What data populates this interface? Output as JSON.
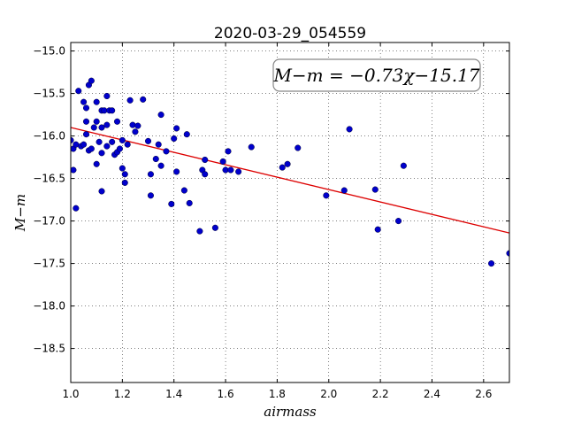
{
  "chart_data": {
    "type": "scatter",
    "title": "2020-03-29_054559",
    "xlabel": "airmass",
    "ylabel": "M−m",
    "xlim": [
      1.0,
      2.7
    ],
    "ylim": [
      -18.9,
      -14.9
    ],
    "y_inverted": true,
    "grid": true,
    "xticks": [
      1.0,
      1.2,
      1.4,
      1.6,
      1.8,
      2.0,
      2.2,
      2.4,
      2.6
    ],
    "xtick_labels": [
      "1.0",
      "1.2",
      "1.4",
      "1.6",
      "1.8",
      "2.0",
      "2.2",
      "2.4",
      "2.6"
    ],
    "yticks": [
      -15.0,
      -15.5,
      -16.0,
      -16.5,
      -17.0,
      -17.5,
      -18.0,
      -18.5
    ],
    "ytick_labels": [
      "−15.0",
      "−15.5",
      "−16.0",
      "−16.5",
      "−17.0",
      "−17.5",
      "−18.0",
      "−18.5"
    ],
    "annotation": "M−m = −0.73χ−15.17",
    "annotation_position": "top-right",
    "fit": {
      "slope": -0.73,
      "intercept": -15.17,
      "color": "#dd0000"
    },
    "marker_color": "#0000cc",
    "points": [
      [
        1.0,
        -16.05
      ],
      [
        1.01,
        -16.15
      ],
      [
        1.01,
        -16.4
      ],
      [
        1.02,
        -16.1
      ],
      [
        1.02,
        -16.85
      ],
      [
        1.03,
        -15.47
      ],
      [
        1.04,
        -16.12
      ],
      [
        1.05,
        -15.6
      ],
      [
        1.05,
        -16.1
      ],
      [
        1.06,
        -15.98
      ],
      [
        1.06,
        -15.67
      ],
      [
        1.06,
        -15.83
      ],
      [
        1.07,
        -15.4
      ],
      [
        1.07,
        -16.17
      ],
      [
        1.08,
        -15.35
      ],
      [
        1.08,
        -16.15
      ],
      [
        1.09,
        -15.9
      ],
      [
        1.1,
        -15.83
      ],
      [
        1.1,
        -15.6
      ],
      [
        1.1,
        -16.33
      ],
      [
        1.11,
        -16.07
      ],
      [
        1.12,
        -15.7
      ],
      [
        1.12,
        -15.9
      ],
      [
        1.12,
        -16.2
      ],
      [
        1.12,
        -16.65
      ],
      [
        1.13,
        -15.7
      ],
      [
        1.14,
        -15.87
      ],
      [
        1.14,
        -16.12
      ],
      [
        1.14,
        -15.53
      ],
      [
        1.15,
        -15.7
      ],
      [
        1.16,
        -16.07
      ],
      [
        1.16,
        -15.7
      ],
      [
        1.17,
        -16.22
      ],
      [
        1.18,
        -16.19
      ],
      [
        1.18,
        -15.83
      ],
      [
        1.19,
        -16.15
      ],
      [
        1.2,
        -16.05
      ],
      [
        1.2,
        -16.38
      ],
      [
        1.21,
        -16.45
      ],
      [
        1.21,
        -16.55
      ],
      [
        1.22,
        -16.1
      ],
      [
        1.23,
        -15.58
      ],
      [
        1.24,
        -15.87
      ],
      [
        1.25,
        -15.95
      ],
      [
        1.26,
        -15.88
      ],
      [
        1.28,
        -15.57
      ],
      [
        1.3,
        -16.06
      ],
      [
        1.31,
        -16.45
      ],
      [
        1.31,
        -16.7
      ],
      [
        1.33,
        -16.27
      ],
      [
        1.34,
        -16.1
      ],
      [
        1.35,
        -16.35
      ],
      [
        1.35,
        -15.75
      ],
      [
        1.37,
        -16.18
      ],
      [
        1.39,
        -16.8
      ],
      [
        1.4,
        -16.03
      ],
      [
        1.41,
        -15.91
      ],
      [
        1.41,
        -16.42
      ],
      [
        1.44,
        -16.64
      ],
      [
        1.45,
        -15.98
      ],
      [
        1.46,
        -16.79
      ],
      [
        1.5,
        -17.12
      ],
      [
        1.51,
        -16.4
      ],
      [
        1.52,
        -16.45
      ],
      [
        1.52,
        -16.28
      ],
      [
        1.56,
        -17.08
      ],
      [
        1.59,
        -16.3
      ],
      [
        1.6,
        -16.4
      ],
      [
        1.61,
        -16.18
      ],
      [
        1.62,
        -16.4
      ],
      [
        1.65,
        -16.42
      ],
      [
        1.7,
        -16.13
      ],
      [
        1.82,
        -16.37
      ],
      [
        1.84,
        -16.33
      ],
      [
        1.88,
        -16.14
      ],
      [
        1.99,
        -16.7
      ],
      [
        2.06,
        -16.64
      ],
      [
        2.08,
        -15.92
      ],
      [
        2.18,
        -16.63
      ],
      [
        2.19,
        -17.1
      ],
      [
        2.27,
        -17.0
      ],
      [
        2.29,
        -16.35
      ],
      [
        2.63,
        -17.5
      ],
      [
        2.7,
        -17.38
      ]
    ]
  }
}
